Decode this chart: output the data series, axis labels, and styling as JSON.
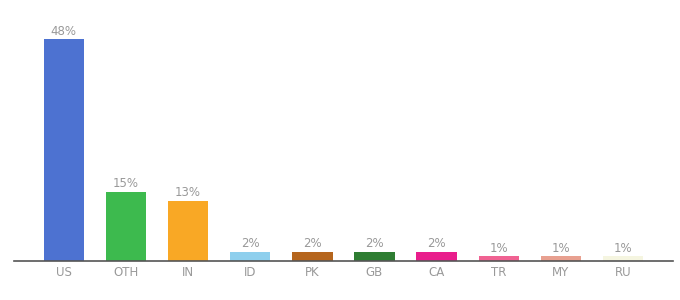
{
  "categories": [
    "US",
    "OTH",
    "IN",
    "ID",
    "PK",
    "GB",
    "CA",
    "TR",
    "MY",
    "RU"
  ],
  "values": [
    48,
    15,
    13,
    2,
    2,
    2,
    2,
    1,
    1,
    1
  ],
  "labels": [
    "48%",
    "15%",
    "13%",
    "2%",
    "2%",
    "2%",
    "2%",
    "1%",
    "1%",
    "1%"
  ],
  "bar_colors": [
    "#4d72d1",
    "#3dba4e",
    "#f9a825",
    "#8ecfed",
    "#b5651d",
    "#2e7d32",
    "#e91e8c",
    "#f06292",
    "#e8a090",
    "#f5f5e0"
  ],
  "background_color": "#ffffff",
  "label_color": "#999999",
  "label_fontsize": 8.5,
  "tick_fontsize": 8.5,
  "ylim": [
    0,
    52
  ],
  "bar_width": 0.65
}
